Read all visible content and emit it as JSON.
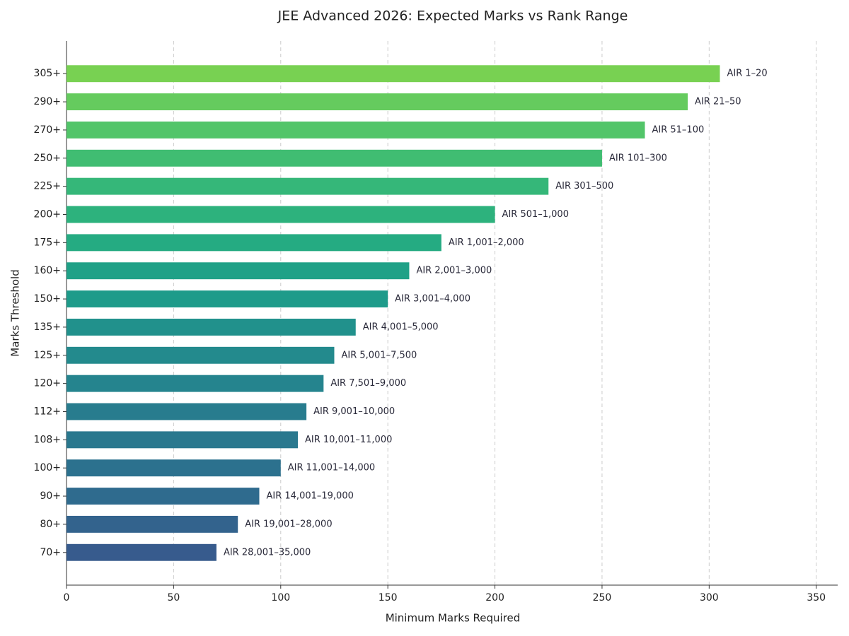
{
  "chart_data": {
    "type": "barh",
    "title": "JEE Advanced 2026: Expected Marks vs Rank Range",
    "x_label": "Minimum Marks Required",
    "y_label": "Marks Threshold",
    "categories": [
      "305+",
      "290+",
      "270+",
      "250+",
      "225+",
      "200+",
      "175+",
      "160+",
      "150+",
      "135+",
      "125+",
      "120+",
      "112+",
      "108+",
      "100+",
      "90+",
      "80+",
      "70+"
    ],
    "values": [
      305,
      290,
      270,
      250,
      225,
      200,
      175,
      160,
      150,
      135,
      125,
      120,
      112,
      108,
      100,
      90,
      80,
      70
    ],
    "annotations": [
      "AIR 1–20",
      "AIR 21–50",
      "AIR 51–100",
      "AIR 101–300",
      "AIR 301–500",
      "AIR 501–1,000",
      "AIR 1,001–2,000",
      "AIR 2,001–3,000",
      "AIR 3,001–4,000",
      "AIR 4,001–5,000",
      "AIR 5,001–7,500",
      "AIR 7,501–9,000",
      "AIR 9,001–10,000",
      "AIR 10,001–11,000",
      "AIR 11,001–14,000",
      "AIR 14,001–19,000",
      "AIR 19,001–28,000",
      "AIR 28,001–35,000"
    ],
    "colors": [
      "#78d152",
      "#65cb5e",
      "#52c569",
      "#40bd72",
      "#35b779",
      "#2db27d",
      "#25ab82",
      "#1fa187",
      "#1e9b8a",
      "#21918c",
      "#238a8d",
      "#25848e",
      "#287c8e",
      "#2a788e",
      "#2c718e",
      "#2f6b8e",
      "#33638d",
      "#375b8d"
    ],
    "xlim": [
      0,
      360
    ],
    "xticks": [
      0,
      50,
      100,
      150,
      200,
      250,
      300,
      350
    ],
    "grid": true
  }
}
